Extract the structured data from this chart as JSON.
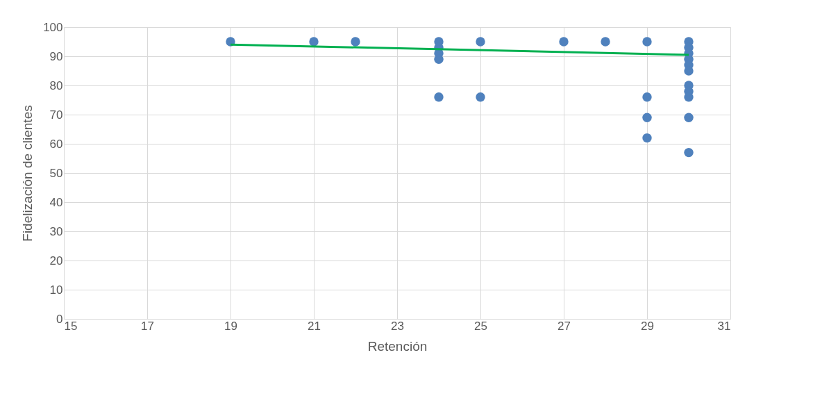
{
  "chart_data": {
    "type": "scatter",
    "xlabel": "Retención",
    "ylabel": "Fidelización de clientes",
    "xlim": [
      15,
      31
    ],
    "xticks": [
      15,
      17,
      19,
      21,
      23,
      25,
      27,
      29,
      31
    ],
    "ylim": [
      0,
      100
    ],
    "yticks": [
      0,
      10,
      20,
      30,
      40,
      50,
      60,
      70,
      80,
      90,
      100
    ],
    "grid": true,
    "series": [
      {
        "marker": "circle",
        "color": "#4f81bd",
        "x": [
          19,
          21,
          22,
          24,
          24,
          24,
          24,
          24,
          25,
          25,
          27,
          28,
          29,
          29,
          29,
          29,
          30,
          30,
          30,
          30,
          30,
          30,
          30,
          30,
          30,
          30,
          30
        ],
        "values": [
          95,
          95,
          95,
          95,
          93,
          91,
          89,
          76,
          95,
          76,
          95,
          95,
          95,
          76,
          69,
          62,
          95,
          93,
          91,
          89,
          87,
          85,
          80,
          78,
          76,
          69,
          57
        ]
      },
      {
        "type": "line",
        "color": "#00b050",
        "x": [
          19,
          30
        ],
        "values": [
          94,
          90.5
        ]
      }
    ]
  }
}
